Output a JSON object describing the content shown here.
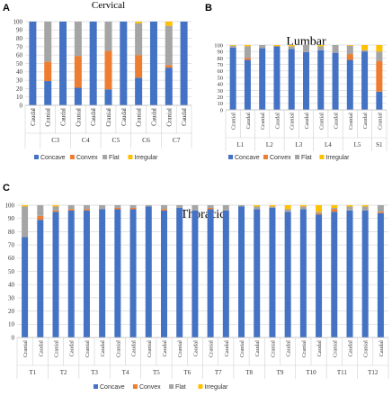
{
  "panel_letters": [
    "A",
    "B",
    "C"
  ],
  "legend_labels": [
    "Concave",
    "Convex",
    "Flat",
    "Irregular"
  ],
  "colors": {
    "Concave": "#4472C4",
    "Convex": "#ED7D31",
    "Flat": "#A5A5A5",
    "Irregular": "#FFC000"
  },
  "chart_data": [
    {
      "type": "bar",
      "stacked": true,
      "title": "Cervical",
      "ylim": [
        0,
        100
      ],
      "yticks": [
        0,
        10,
        20,
        30,
        40,
        50,
        60,
        70,
        80,
        90,
        100
      ],
      "categories": [
        "Caudal",
        "Cranial",
        "Caudal",
        "Cranial",
        "Caudal",
        "Cranial",
        "Caudal",
        "Cranial",
        "Caudal",
        "Cranial",
        "Caudal"
      ],
      "groups": [
        {
          "label": "",
          "span": 1
        },
        {
          "label": "C3",
          "span": 2
        },
        {
          "label": "C4",
          "span": 2
        },
        {
          "label": "C5",
          "span": 2
        },
        {
          "label": "C6",
          "span": 2
        },
        {
          "label": "C7",
          "span": 2
        }
      ],
      "series": [
        {
          "name": "Concave",
          "values": [
            100,
            29,
            100,
            21,
            100,
            19,
            100,
            33,
            100,
            45,
            100
          ]
        },
        {
          "name": "Convex",
          "values": [
            0,
            23,
            0,
            38,
            0,
            46,
            0,
            27,
            0,
            3,
            0
          ]
        },
        {
          "name": "Flat",
          "values": [
            0,
            48,
            0,
            41,
            0,
            35,
            0,
            38,
            0,
            47,
            0
          ]
        },
        {
          "name": "Irregular",
          "values": [
            0,
            0,
            0,
            0,
            0,
            0,
            0,
            2,
            0,
            5,
            0
          ]
        }
      ],
      "legend": "bottom"
    },
    {
      "type": "bar",
      "stacked": true,
      "title": "Lumbar",
      "ylim": [
        0,
        100
      ],
      "yticks": [
        0,
        10,
        20,
        30,
        40,
        50,
        60,
        70,
        80,
        90,
        100
      ],
      "categories": [
        "Cranial",
        "Caudal",
        "Cranial",
        "Caudal",
        "Cranial",
        "Caudal",
        "Cranial",
        "Caudal",
        "Cranial",
        "Caudal",
        "Cranial"
      ],
      "groups": [
        {
          "label": "L1",
          "span": 2
        },
        {
          "label": "L2",
          "span": 2
        },
        {
          "label": "L3",
          "span": 2
        },
        {
          "label": "L4",
          "span": 2
        },
        {
          "label": "L5",
          "span": 2
        },
        {
          "label": "S1",
          "span": 1
        }
      ],
      "series": [
        {
          "name": "Concave",
          "values": [
            96,
            77,
            95,
            98,
            94,
            89,
            92,
            88,
            77,
            90,
            28
          ]
        },
        {
          "name": "Convex",
          "values": [
            0,
            3,
            0,
            0,
            0,
            0,
            0,
            0,
            9,
            0,
            47
          ]
        },
        {
          "name": "Flat",
          "values": [
            3,
            18,
            5,
            0,
            4,
            11,
            6,
            12,
            13,
            2,
            15
          ]
        },
        {
          "name": "Irregular",
          "values": [
            1,
            2,
            0,
            2,
            2,
            0,
            2,
            0,
            1,
            8,
            10
          ]
        }
      ],
      "legend": "bottom"
    },
    {
      "type": "bar",
      "stacked": true,
      "title": "Thoracic",
      "ylim": [
        0,
        100
      ],
      "yticks": [
        0,
        10,
        20,
        30,
        40,
        50,
        60,
        70,
        80,
        90,
        100
      ],
      "categories": [
        "Cranial",
        "Caudal",
        "Cranial",
        "Caudal",
        "Cranial",
        "Caudal",
        "Cranial",
        "Caudal",
        "Cranial",
        "Caudal",
        "Cranial",
        "Caudal",
        "Cranial",
        "Caudal",
        "Cranial",
        "Caudal",
        "Cranial",
        "Caudal",
        "Cranial",
        "Caudal",
        "Cranial",
        "Caudal",
        "Cranial",
        "Caudal"
      ],
      "groups": [
        {
          "label": "T1",
          "span": 2
        },
        {
          "label": "T2",
          "span": 2
        },
        {
          "label": "T3",
          "span": 2
        },
        {
          "label": "T4",
          "span": 2
        },
        {
          "label": "T5",
          "span": 2
        },
        {
          "label": "T6",
          "span": 2
        },
        {
          "label": "T7",
          "span": 2
        },
        {
          "label": "T8",
          "span": 2
        },
        {
          "label": "T9",
          "span": 2
        },
        {
          "label": "T10",
          "span": 2
        },
        {
          "label": "T11",
          "span": 2
        },
        {
          "label": "T12",
          "span": 2
        }
      ],
      "series": [
        {
          "name": "Concave",
          "values": [
            76,
            89,
            95,
            96,
            96,
            97,
            97,
            97,
            99,
            96,
            98,
            96,
            97,
            96,
            99,
            97,
            98,
            95,
            97,
            93,
            95,
            96,
            96,
            94
          ]
        },
        {
          "name": "Convex",
          "values": [
            0,
            3,
            1,
            1,
            1,
            0,
            1,
            1,
            0,
            1,
            0,
            0,
            1,
            0,
            0,
            0,
            0,
            0,
            0,
            1,
            2,
            0,
            0,
            1
          ]
        },
        {
          "name": "Flat",
          "values": [
            23,
            8,
            3,
            3,
            3,
            3,
            2,
            2,
            1,
            3,
            2,
            4,
            2,
            4,
            1,
            2,
            1,
            2,
            2,
            1,
            1,
            3,
            3,
            5
          ]
        },
        {
          "name": "Irregular",
          "values": [
            1,
            0,
            1,
            0,
            0,
            0,
            0,
            0,
            0,
            0,
            0,
            0,
            0,
            0,
            0,
            1,
            1,
            3,
            1,
            5,
            2,
            1,
            1,
            0
          ]
        }
      ],
      "legend": "bottom"
    }
  ]
}
